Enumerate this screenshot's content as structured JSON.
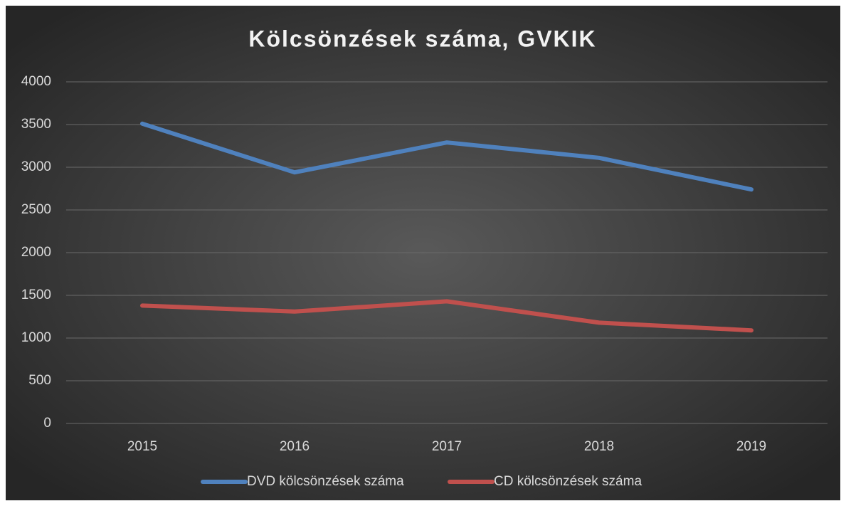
{
  "chart_data": {
    "type": "line",
    "title": "Kölcsönzések száma, GVKIK",
    "categories": [
      "2015",
      "2016",
      "2017",
      "2018",
      "2019"
    ],
    "series": [
      {
        "name": "DVD kölcsönzések száma",
        "color": "#4f81bd",
        "values": [
          3510,
          2940,
          3290,
          3110,
          2740
        ]
      },
      {
        "name": "CD kölcsönzések száma",
        "color": "#c0504d",
        "values": [
          1380,
          1310,
          1430,
          1180,
          1090
        ]
      }
    ],
    "ylim": [
      0,
      4000
    ],
    "yticks": [
      0,
      500,
      1000,
      1500,
      2000,
      2500,
      3000,
      3500,
      4000
    ],
    "grid": true,
    "legend": "bottom"
  }
}
